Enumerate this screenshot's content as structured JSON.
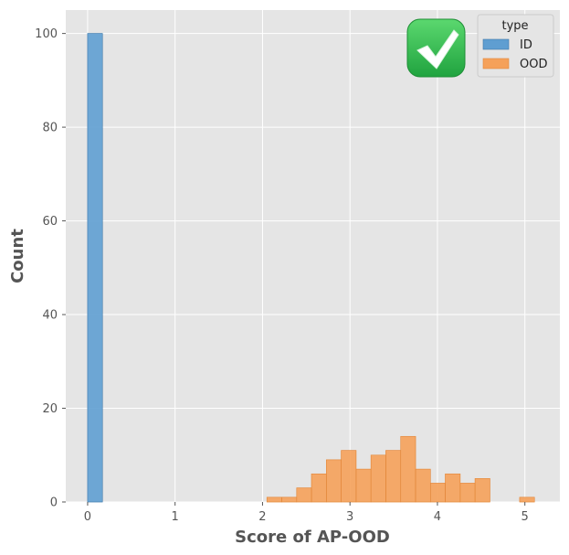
{
  "chart_data": {
    "type": "histogram",
    "xlabel": "Score of AP-OOD",
    "ylabel": "Count",
    "xlim": [
      -0.25,
      5.4
    ],
    "ylim": [
      0,
      105
    ],
    "x_ticks": [
      0,
      1,
      2,
      3,
      4,
      5
    ],
    "y_ticks": [
      0,
      20,
      40,
      60,
      80,
      100
    ],
    "grid": true,
    "legend": {
      "title": "type",
      "position": "top-right"
    },
    "series": [
      {
        "name": "ID",
        "color": "#5f9ed1",
        "bins": [
          {
            "x0": 0.0,
            "x1": 0.17,
            "count": 100
          }
        ]
      },
      {
        "name": "OOD",
        "color": "#f5a15a",
        "bins": [
          {
            "x0": 2.05,
            "x1": 2.22,
            "count": 1
          },
          {
            "x0": 2.22,
            "x1": 2.39,
            "count": 1
          },
          {
            "x0": 2.39,
            "x1": 2.56,
            "count": 3
          },
          {
            "x0": 2.56,
            "x1": 2.73,
            "count": 6
          },
          {
            "x0": 2.73,
            "x1": 2.9,
            "count": 9
          },
          {
            "x0": 2.9,
            "x1": 3.07,
            "count": 11
          },
          {
            "x0": 3.07,
            "x1": 3.24,
            "count": 7
          },
          {
            "x0": 3.24,
            "x1": 3.41,
            "count": 10
          },
          {
            "x0": 3.41,
            "x1": 3.58,
            "count": 11
          },
          {
            "x0": 3.58,
            "x1": 3.75,
            "count": 14
          },
          {
            "x0": 3.75,
            "x1": 3.92,
            "count": 7
          },
          {
            "x0": 3.92,
            "x1": 4.09,
            "count": 4
          },
          {
            "x0": 4.09,
            "x1": 4.26,
            "count": 6
          },
          {
            "x0": 4.26,
            "x1": 4.43,
            "count": 4
          },
          {
            "x0": 4.43,
            "x1": 4.6,
            "count": 5
          },
          {
            "x0": 4.6,
            "x1": 4.77,
            "count": 0
          },
          {
            "x0": 4.77,
            "x1": 4.94,
            "count": 0
          },
          {
            "x0": 4.94,
            "x1": 5.11,
            "count": 1
          }
        ]
      }
    ]
  },
  "badge": {
    "icon": "check-mark-icon",
    "color": "#2fb84f"
  }
}
